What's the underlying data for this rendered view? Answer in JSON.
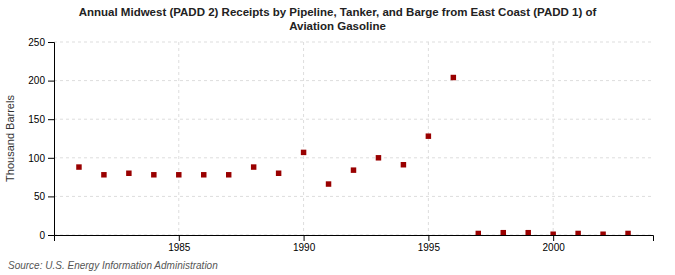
{
  "chart_data": {
    "type": "scatter",
    "title": "Annual Midwest (PADD 2) Receipts by Pipeline, Tanker, and Barge from East Coast (PADD 1) of\nAviation Gasoline",
    "y_label": "Thousand Barrels",
    "annotations": [
      "Source: U.S. Energy Information Administration"
    ],
    "x": [
      1981,
      1982,
      1983,
      1984,
      1985,
      1986,
      1987,
      1988,
      1989,
      1990,
      1991,
      1992,
      1993,
      1994,
      1995,
      1996,
      1997,
      1998,
      1999,
      2000,
      2001,
      2002,
      2003
    ],
    "values": [
      88,
      78,
      80,
      78,
      78,
      78,
      78,
      88,
      80,
      107,
      66,
      84,
      100,
      91,
      128,
      204,
      2,
      3,
      3,
      1,
      2,
      1,
      2
    ],
    "color": "#990000",
    "marker": "square",
    "xlim": [
      1980,
      2004
    ],
    "xticks": [
      1985,
      1990,
      1995,
      2000
    ],
    "ylim": [
      0,
      250
    ],
    "yticks": [
      0,
      50,
      100,
      150,
      200,
      250
    ],
    "grid": true
  }
}
